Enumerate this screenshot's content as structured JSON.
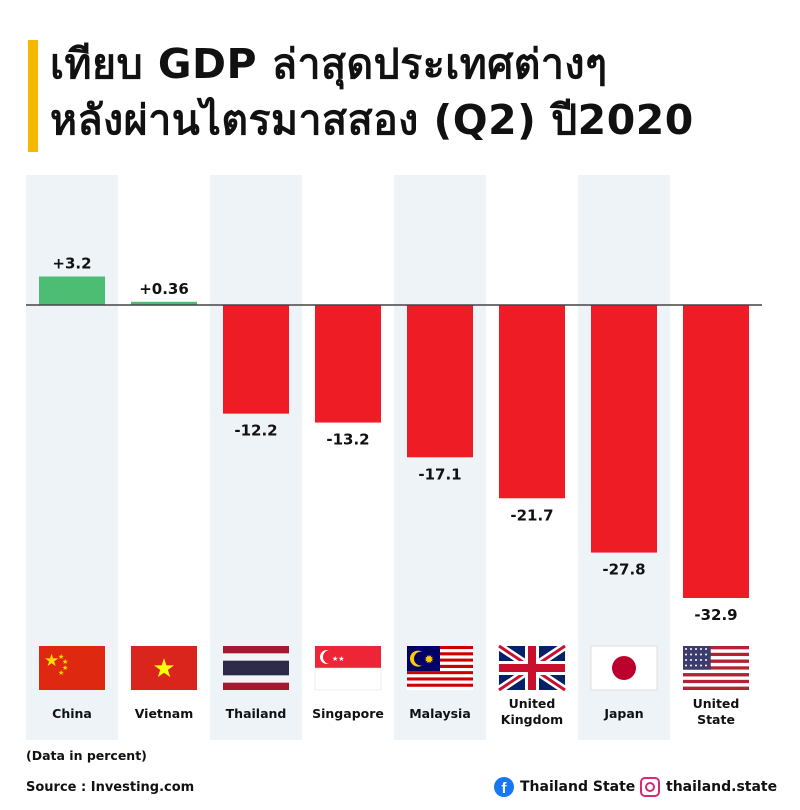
{
  "header": {
    "title_line1": "เทียบ GDP ล่าสุดประเทศต่างๆ",
    "title_line2": "หลังผ่านไตรมาสสอง (Q2) ปี2020"
  },
  "footer": {
    "unit_note": "(Data in percent)",
    "source": "Source : Investing.com",
    "facebook": "Thailand State",
    "instagram": "thailand.state"
  },
  "colors": {
    "positive": "#4dbd74",
    "negative": "#ee1c25",
    "column_band": "#eef3f8",
    "accent": "#f5b800"
  },
  "chart_data": {
    "type": "bar",
    "categories": [
      "China",
      "Vietnam",
      "Thailand",
      "Singapore",
      "Malaysia",
      "United Kingdom",
      "Japan",
      "United State"
    ],
    "category_lines": [
      [
        "China"
      ],
      [
        "Vietnam"
      ],
      [
        "Thailand"
      ],
      [
        "Singapore"
      ],
      [
        "Malaysia"
      ],
      [
        "United",
        "Kingdom"
      ],
      [
        "Japan"
      ],
      [
        "United",
        "State"
      ]
    ],
    "values": [
      3.2,
      0.36,
      -12.2,
      -13.2,
      -17.1,
      -21.7,
      -27.8,
      -32.9
    ],
    "data_labels": [
      "+3.2",
      "+0.36",
      "-12.2",
      "-13.2",
      "-17.1",
      "-21.7",
      "-27.8",
      "-32.9"
    ],
    "flags": [
      "china-flag",
      "vietnam-flag",
      "thailand-flag",
      "singapore-flag",
      "malaysia-flag",
      "united-kingdom-flag",
      "japan-flag",
      "united-states-flag"
    ],
    "title": "",
    "xlabel": "",
    "ylabel": "",
    "ylim": [
      -32.9,
      3.2
    ],
    "grid": false,
    "legend": "none"
  }
}
